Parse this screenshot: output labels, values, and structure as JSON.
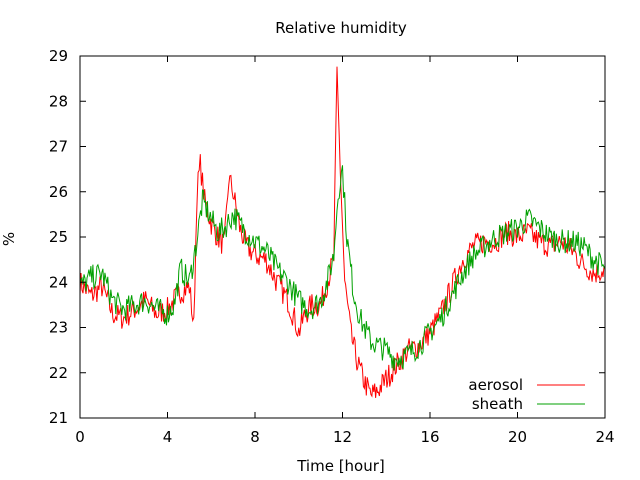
{
  "chart_data": {
    "type": "line",
    "title": "Relative humidity",
    "xlabel": "Time [hour]",
    "ylabel": "%",
    "xlim": [
      0,
      24
    ],
    "ylim": [
      21,
      29
    ],
    "xticks": [
      0,
      4,
      8,
      12,
      16,
      20,
      24
    ],
    "yticks": [
      21,
      22,
      23,
      24,
      25,
      26,
      27,
      28,
      29
    ],
    "grid": false,
    "legend_position": "bottom-right",
    "series": [
      {
        "name": "aerosol",
        "color": "#ff0000",
        "x": [
          0,
          0.5,
          1,
          1.5,
          2,
          2.5,
          3,
          3.5,
          4,
          4.3,
          4.6,
          5,
          5.2,
          5.35,
          5.5,
          5.7,
          6,
          6.3,
          6.6,
          6.8,
          7,
          7.3,
          7.6,
          8,
          8.5,
          9,
          9.5,
          9.8,
          10,
          10.3,
          10.6,
          11,
          11.3,
          11.6,
          11.75,
          11.9,
          12.1,
          12.4,
          12.7,
          13,
          13.3,
          13.6,
          13.9,
          14.2,
          14.5,
          15,
          15.5,
          16,
          16.5,
          17,
          17.5,
          18,
          18.5,
          19,
          19.5,
          20,
          20.5,
          21,
          21.5,
          22,
          22.5,
          23,
          23.5,
          24
        ],
        "y": [
          24.0,
          23.7,
          23.9,
          23.3,
          23.2,
          23.4,
          23.6,
          23.3,
          23.4,
          23.6,
          23.8,
          23.9,
          23.0,
          26.0,
          26.6,
          25.8,
          25.3,
          25.0,
          24.8,
          26.3,
          26.0,
          25.2,
          24.8,
          24.6,
          24.5,
          24.0,
          23.6,
          23.2,
          22.9,
          23.3,
          23.5,
          23.5,
          24.0,
          24.5,
          28.6,
          26.5,
          24.0,
          22.8,
          22.2,
          21.8,
          21.5,
          21.6,
          21.8,
          22.0,
          22.2,
          22.5,
          22.6,
          22.9,
          23.3,
          23.9,
          24.5,
          24.8,
          24.9,
          24.9,
          25.1,
          25.0,
          25.1,
          24.9,
          24.8,
          24.9,
          24.7,
          24.4,
          24.2,
          24.3
        ]
      },
      {
        "name": "sheath",
        "color": "#00a000",
        "x": [
          0,
          0.5,
          1,
          1.5,
          2,
          2.5,
          3,
          3.5,
          4,
          4.3,
          4.6,
          5,
          5.3,
          5.6,
          6,
          6.3,
          6.6,
          7,
          7.3,
          7.6,
          8,
          8.5,
          9,
          9.5,
          10,
          10.5,
          11,
          11.3,
          11.6,
          11.8,
          12,
          12.2,
          12.5,
          12.8,
          13,
          13.3,
          13.6,
          14,
          14.4,
          15,
          15.5,
          16,
          16.5,
          17,
          17.5,
          18,
          18.5,
          19,
          19.5,
          20,
          20.5,
          21,
          21.5,
          22,
          22.5,
          23,
          23.5,
          24
        ],
        "y": [
          23.9,
          24.1,
          24.2,
          23.6,
          23.4,
          23.5,
          23.6,
          23.4,
          23.3,
          23.5,
          24.3,
          24.0,
          24.8,
          25.8,
          25.4,
          25.1,
          25.2,
          25.5,
          25.3,
          25.1,
          24.9,
          24.7,
          24.3,
          24.0,
          23.6,
          23.4,
          23.6,
          24.0,
          24.6,
          26.0,
          26.5,
          25.0,
          23.8,
          23.2,
          23.0,
          22.7,
          22.6,
          22.5,
          22.3,
          22.4,
          22.6,
          22.9,
          23.2,
          23.7,
          24.2,
          24.6,
          24.8,
          25.0,
          25.1,
          25.2,
          25.4,
          25.2,
          25.0,
          24.9,
          24.9,
          24.8,
          24.5,
          24.3
        ]
      }
    ]
  }
}
